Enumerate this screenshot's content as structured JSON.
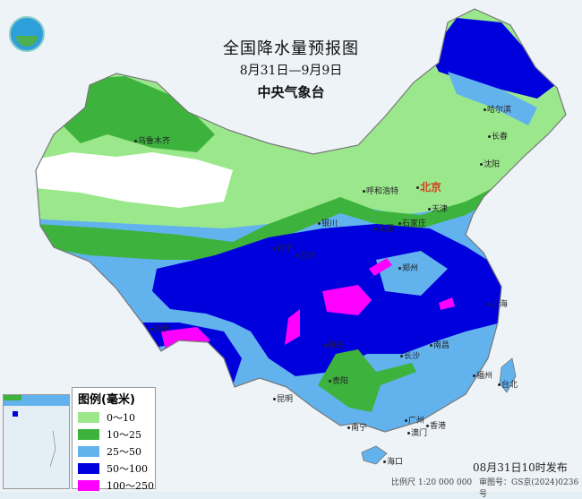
{
  "header": {
    "title": "全国降水量预报图",
    "date_range": "8月31日—9月9日",
    "issuer": "中央气象台"
  },
  "legend": {
    "title": "图例(毫米)",
    "items": [
      {
        "label": "0～10",
        "color": "#9be88c"
      },
      {
        "label": "10～25",
        "color": "#3db33d"
      },
      {
        "label": "25～50",
        "color": "#62b2ee"
      },
      {
        "label": "50～100",
        "color": "#0000dd"
      },
      {
        "label": "100～250",
        "color": "#ff00ff"
      }
    ]
  },
  "cities": [
    {
      "name": "乌鲁木齐"
    },
    {
      "name": "哈尔滨"
    },
    {
      "name": "长春"
    },
    {
      "name": "沈阳"
    },
    {
      "name": "北京"
    },
    {
      "name": "天津"
    },
    {
      "name": "呼和浩特"
    },
    {
      "name": "银川"
    },
    {
      "name": "太原"
    },
    {
      "name": "石家庄"
    },
    {
      "name": "西宁"
    },
    {
      "name": "兰州"
    },
    {
      "name": "郑州"
    },
    {
      "name": "拉萨"
    },
    {
      "name": "重庆"
    },
    {
      "name": "长沙"
    },
    {
      "name": "南昌"
    },
    {
      "name": "福州"
    },
    {
      "name": "台北"
    },
    {
      "name": "贵阳"
    },
    {
      "name": "昆明"
    },
    {
      "name": "南宁"
    },
    {
      "name": "广州"
    },
    {
      "name": "澳门"
    },
    {
      "name": "香港"
    },
    {
      "name": "海口"
    },
    {
      "name": "上海"
    }
  ],
  "footer": {
    "issued": "08月31日10时发布",
    "scale": "比例尺 1:20 000 000",
    "map_number": "审图号：GS京(2024)0236号"
  }
}
